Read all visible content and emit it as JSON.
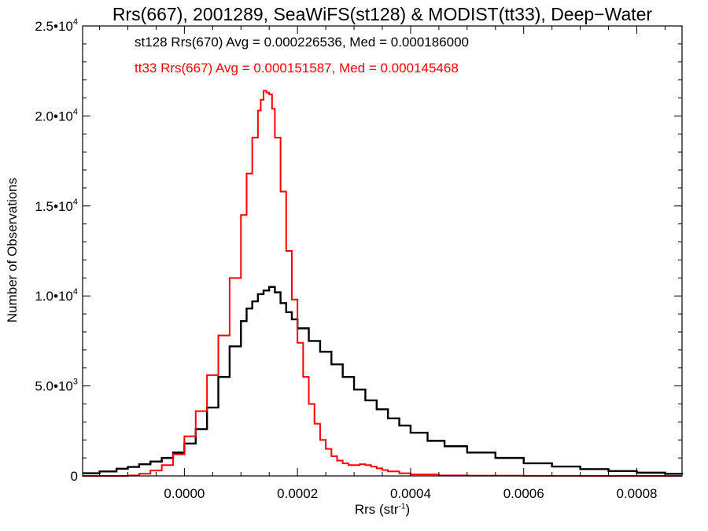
{
  "chart_data": {
    "type": "histogram",
    "title": "Rrs(667), 2001289, SeaWiFS(st128) & MODIST(tt33), Deep−Water",
    "xlabel": "Rrs (str",
    "xlabel_sup": "-1",
    "xlabel_tail": ")",
    "ylabel": "Number of Observations",
    "xlim": [
      -0.00018,
      0.00088
    ],
    "ylim": [
      0,
      25000
    ],
    "x_ticks": [
      {
        "value": 0.0,
        "label": "0.0000"
      },
      {
        "value": 0.0002,
        "label": "0.0002"
      },
      {
        "value": 0.0004,
        "label": "0.0004"
      },
      {
        "value": 0.0006,
        "label": "0.0006"
      },
      {
        "value": 0.0008,
        "label": "0.0008"
      }
    ],
    "y_ticks": [
      {
        "value": 0,
        "mant": "0",
        "exp": ""
      },
      {
        "value": 5000,
        "mant": "5.0•10",
        "exp": "3"
      },
      {
        "value": 10000,
        "mant": "1.0•10",
        "exp": "4"
      },
      {
        "value": 15000,
        "mant": "1.5•10",
        "exp": "4"
      },
      {
        "value": 20000,
        "mant": "2.0•10",
        "exp": "4"
      },
      {
        "value": 25000,
        "mant": "2.5•10",
        "exp": "4"
      }
    ],
    "legend": [
      {
        "text": "st128 Rrs(670) Avg = 0.000226536, Med = 0.000186000",
        "color": "#000000"
      },
      {
        "text": "tt33 Rrs(667) Avg = 0.000151587, Med = 0.000145468",
        "color": "#ff0000"
      }
    ],
    "series": [
      {
        "name": "st128",
        "color": "#000000",
        "x": [
          -0.00018,
          -0.00015,
          -0.00012,
          -0.0001,
          -8e-05,
          -6e-05,
          -4e-05,
          -2e-05,
          0.0,
          2e-05,
          4e-05,
          6e-05,
          8e-05,
          0.0001,
          0.00011,
          0.00012,
          0.00013,
          0.00014,
          0.00015,
          0.00016,
          0.00017,
          0.00018,
          0.00019,
          0.0002,
          0.00022,
          0.00024,
          0.00026,
          0.00028,
          0.0003,
          0.00032,
          0.00034,
          0.00036,
          0.00038,
          0.0004,
          0.00043,
          0.00046,
          0.0005,
          0.00055,
          0.0006,
          0.00065,
          0.0007,
          0.00075,
          0.0008,
          0.00085,
          0.00088
        ],
        "y": [
          150,
          250,
          400,
          500,
          650,
          800,
          1000,
          1300,
          1800,
          2600,
          3800,
          5500,
          7200,
          8600,
          9300,
          9700,
          10100,
          10300,
          10500,
          10200,
          9600,
          9100,
          8700,
          8200,
          7500,
          6900,
          6200,
          5500,
          4800,
          4200,
          3700,
          3200,
          2800,
          2400,
          1950,
          1650,
          1300,
          1000,
          700,
          520,
          380,
          270,
          180,
          120,
          90
        ]
      },
      {
        "name": "tt33",
        "color": "#ff0000",
        "x": [
          -0.00018,
          -0.00012,
          -0.0001,
          -8e-05,
          -6e-05,
          -4e-05,
          -2e-05,
          0.0,
          2e-05,
          4e-05,
          6e-05,
          8e-05,
          0.0001,
          0.00011,
          0.00012,
          0.00013,
          0.000135,
          0.00014,
          0.000145,
          0.00015,
          0.000155,
          0.00016,
          0.00017,
          0.00018,
          0.00019,
          0.0002,
          0.00021,
          0.00022,
          0.00023,
          0.00024,
          0.00025,
          0.00026,
          0.00027,
          0.00028,
          0.00029,
          0.0003,
          0.00031,
          0.00032,
          0.00033,
          0.00034,
          0.00035,
          0.00036,
          0.00038,
          0.0004,
          0.00045,
          0.0005,
          0.0006,
          0.0007,
          0.00088
        ],
        "y": [
          0,
          0,
          30,
          120,
          300,
          600,
          1200,
          2200,
          3600,
          5600,
          7800,
          11000,
          14500,
          16800,
          18800,
          20300,
          20900,
          21400,
          21300,
          21200,
          20400,
          18800,
          15800,
          12500,
          9800,
          7400,
          5500,
          4000,
          2900,
          2000,
          1500,
          1100,
          850,
          700,
          600,
          600,
          650,
          600,
          520,
          420,
          330,
          250,
          150,
          80,
          30,
          15,
          5,
          0,
          0
        ]
      }
    ]
  }
}
